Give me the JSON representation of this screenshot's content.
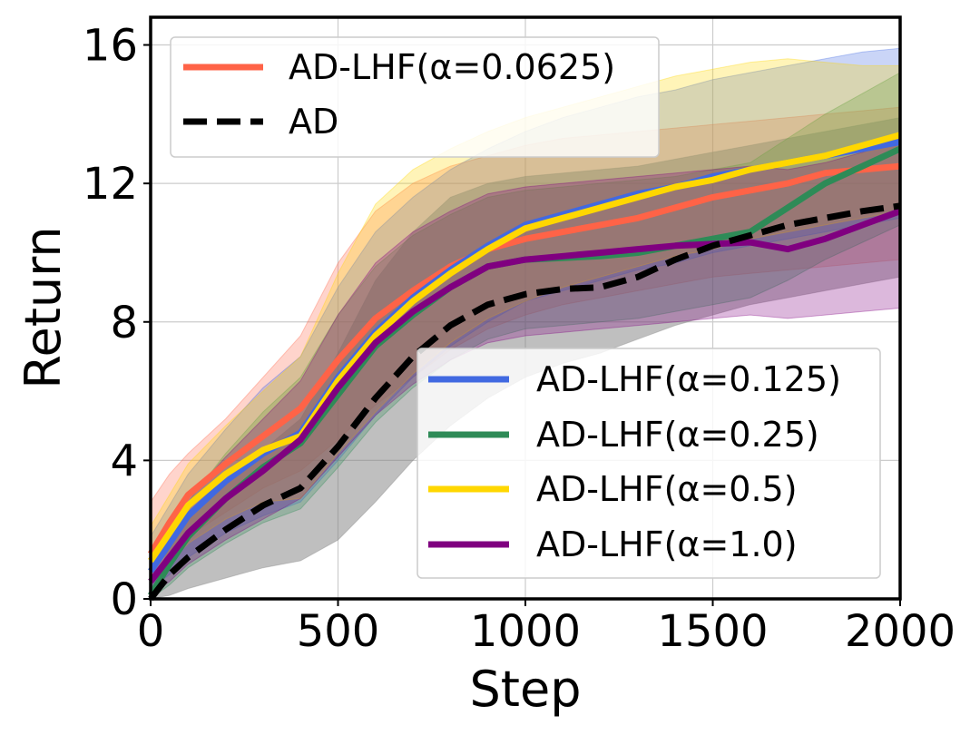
{
  "chart_data": {
    "type": "line",
    "xlabel": "Step",
    "ylabel": "Return",
    "xlim": [
      0,
      2000
    ],
    "ylim": [
      0,
      16.8
    ],
    "xticks": [
      0,
      500,
      1000,
      1500,
      2000
    ],
    "xtick_labels": [
      "0",
      "500",
      "1000",
      "1500",
      "2000"
    ],
    "yticks": [
      0,
      4,
      8,
      12,
      16
    ],
    "ytick_labels": [
      "0",
      "4",
      "8",
      "12",
      "16"
    ],
    "grid": true,
    "legend_groups": [
      {
        "placement": "top-left",
        "entries": [
          "AD-LHF(α=0.0625)",
          "AD"
        ]
      },
      {
        "placement": "lower-right",
        "entries": [
          "AD-LHF(α=0.125)",
          "AD-LHF(α=0.25)",
          "AD-LHF(α=0.5)",
          "AD-LHF(α=1.0)"
        ]
      }
    ],
    "x": [
      0,
      50,
      100,
      200,
      300,
      400,
      500,
      600,
      700,
      800,
      900,
      1000,
      1100,
      1200,
      1300,
      1400,
      1500,
      1600,
      1700,
      1800,
      1900,
      2000
    ],
    "series": [
      {
        "name": "AD-LHF(α=0.0625)",
        "color": "#ff6347",
        "dash": "solid",
        "values": [
          1.3,
          2.2,
          3.0,
          3.9,
          4.7,
          5.5,
          6.9,
          8.1,
          8.9,
          9.6,
          10.1,
          10.4,
          10.6,
          10.8,
          11.0,
          11.3,
          11.6,
          11.8,
          12.0,
          12.3,
          12.4,
          12.5
        ],
        "lower": [
          0.6,
          1.2,
          1.8,
          2.5,
          3.2,
          3.7,
          4.6,
          5.6,
          6.4,
          7.2,
          7.8,
          8.2,
          8.5,
          8.7,
          8.9,
          9.1,
          9.3,
          9.4,
          9.5,
          9.6,
          9.7,
          9.8
        ],
        "upper": [
          2.8,
          3.6,
          4.2,
          5.2,
          6.4,
          7.6,
          9.7,
          11.2,
          12.0,
          12.5,
          12.8,
          13.1,
          13.3,
          13.4,
          13.5,
          13.6,
          13.7,
          13.8,
          13.9,
          14.0,
          14.1,
          14.2
        ]
      },
      {
        "name": "AD",
        "color": "#000000",
        "dash": "dashed",
        "values": [
          0.0,
          0.7,
          1.2,
          2.0,
          2.7,
          3.2,
          4.4,
          5.8,
          7.0,
          7.9,
          8.5,
          8.8,
          8.95,
          9.0,
          9.3,
          9.8,
          10.2,
          10.5,
          10.8,
          11.0,
          11.2,
          11.35
        ],
        "lower": [
          0.0,
          0.1,
          0.3,
          0.6,
          0.9,
          1.1,
          1.7,
          2.8,
          4.0,
          5.0,
          5.8,
          6.4,
          6.8,
          7.1,
          7.5,
          7.9,
          8.2,
          8.5,
          8.7,
          8.9,
          9.1,
          9.3
        ],
        "upper": [
          0.3,
          1.5,
          2.3,
          3.3,
          4.3,
          5.2,
          7.1,
          9.2,
          10.6,
          11.6,
          12.0,
          12.2,
          12.3,
          12.4,
          12.5,
          12.7,
          12.9,
          13.1,
          13.3,
          13.5,
          13.7,
          13.9
        ]
      },
      {
        "name": "AD-LHF(α=0.125)",
        "color": "#4169e1",
        "dash": "solid",
        "values": [
          0.8,
          1.6,
          2.4,
          3.4,
          4.2,
          4.8,
          6.4,
          7.7,
          8.7,
          9.5,
          10.2,
          10.8,
          11.1,
          11.4,
          11.7,
          11.9,
          12.2,
          12.4,
          12.6,
          12.8,
          13.0,
          13.2
        ],
        "lower": [
          0.3,
          0.7,
          1.2,
          1.9,
          2.4,
          2.8,
          4.0,
          5.3,
          6.4,
          7.3,
          8.0,
          8.6,
          8.9,
          9.2,
          9.5,
          9.7,
          10.0,
          10.2,
          10.4,
          10.6,
          10.8,
          11.0
        ],
        "upper": [
          1.8,
          2.7,
          3.6,
          4.9,
          6.1,
          7.0,
          9.0,
          10.6,
          11.6,
          12.4,
          13.0,
          13.5,
          13.9,
          14.2,
          14.5,
          14.7,
          15.0,
          15.2,
          15.4,
          15.6,
          15.8,
          15.9
        ]
      },
      {
        "name": "AD-LHF(α=0.25)",
        "color": "#2e8b57",
        "dash": "solid",
        "values": [
          0.1,
          1.0,
          1.8,
          2.9,
          3.8,
          4.5,
          5.9,
          7.3,
          8.2,
          9.0,
          9.6,
          9.8,
          9.85,
          9.9,
          10.0,
          10.2,
          10.4,
          10.6,
          11.3,
          12.0,
          12.5,
          13.0
        ],
        "lower": [
          0.0,
          0.4,
          0.9,
          1.6,
          2.2,
          2.6,
          3.8,
          5.1,
          6.1,
          6.9,
          7.5,
          7.8,
          7.9,
          8.0,
          8.1,
          8.3,
          8.5,
          8.7,
          9.2,
          9.8,
          10.3,
          10.8
        ],
        "upper": [
          0.5,
          1.8,
          2.8,
          4.2,
          5.4,
          6.4,
          8.2,
          9.6,
          10.5,
          11.1,
          11.6,
          11.8,
          11.9,
          12.0,
          12.1,
          12.2,
          12.4,
          12.6,
          13.3,
          14.0,
          14.6,
          15.2
        ]
      },
      {
        "name": "AD-LHF(α=0.5)",
        "color": "#ffd700",
        "dash": "solid",
        "values": [
          1.1,
          1.9,
          2.7,
          3.6,
          4.3,
          4.7,
          6.3,
          7.6,
          8.6,
          9.4,
          10.1,
          10.7,
          11.0,
          11.3,
          11.6,
          11.9,
          12.1,
          12.4,
          12.6,
          12.8,
          13.1,
          13.4
        ],
        "lower": [
          0.5,
          1.0,
          1.6,
          2.3,
          2.8,
          2.9,
          4.2,
          5.4,
          6.5,
          7.4,
          8.1,
          8.6,
          9.0,
          9.3,
          9.6,
          9.9,
          10.1,
          10.4,
          10.6,
          10.8,
          11.0,
          11.2
        ],
        "upper": [
          2.1,
          3.0,
          3.9,
          5.0,
          6.0,
          7.0,
          9.4,
          11.4,
          12.4,
          13.0,
          13.5,
          13.9,
          14.2,
          14.5,
          14.8,
          15.1,
          15.3,
          15.5,
          15.6,
          15.5,
          15.4,
          15.4
        ]
      },
      {
        "name": "AD-LHF(α=1.0)",
        "color": "#800080",
        "dash": "solid",
        "values": [
          0.5,
          1.2,
          1.9,
          2.9,
          3.7,
          4.6,
          6.1,
          7.4,
          8.3,
          9.0,
          9.6,
          9.8,
          9.9,
          10.0,
          10.1,
          10.2,
          10.25,
          10.3,
          10.1,
          10.4,
          10.8,
          11.2
        ],
        "lower": [
          0.1,
          0.5,
          1.0,
          1.7,
          2.3,
          2.9,
          4.1,
          5.3,
          6.2,
          6.9,
          7.4,
          7.6,
          7.7,
          7.8,
          7.9,
          8.0,
          8.1,
          8.2,
          8.1,
          8.2,
          8.3,
          8.4
        ],
        "upper": [
          1.1,
          2.0,
          2.9,
          4.1,
          5.2,
          6.3,
          8.2,
          9.7,
          10.6,
          11.2,
          11.7,
          11.9,
          12.0,
          12.1,
          12.2,
          12.3,
          12.4,
          12.5,
          12.4,
          12.6,
          12.9,
          13.3
        ]
      }
    ]
  }
}
